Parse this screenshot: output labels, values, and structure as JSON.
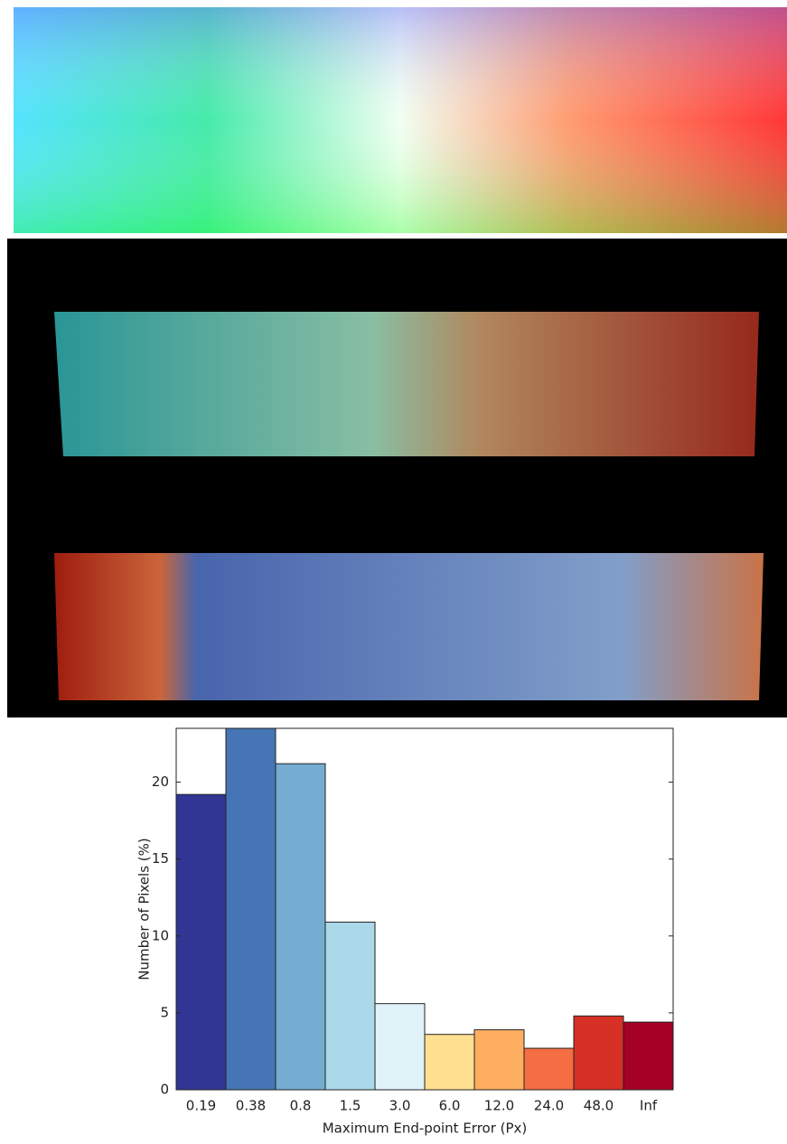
{
  "chart_data": {
    "type": "bar",
    "categories": [
      "0.19",
      "0.38",
      "0.8",
      "1.5",
      "3.0",
      "6.0",
      "12.0",
      "24.0",
      "48.0",
      "Inf"
    ],
    "values": [
      19.2,
      24,
      21.2,
      10.9,
      5.6,
      3.6,
      3.9,
      2.7,
      4.8,
      4.4
    ],
    "colors": [
      "#313695",
      "#4575b4",
      "#74add1",
      "#abd9e9",
      "#e0f3f8",
      "#fee090",
      "#fdae61",
      "#f46d43",
      "#d73027",
      "#a50026"
    ],
    "ylim": [
      0,
      23.5
    ],
    "yticks": [
      0,
      5,
      10,
      15,
      20
    ],
    "ylabel": "Number of Pixels (%)",
    "xlabel": "Maximum End-point Error (Px)"
  }
}
